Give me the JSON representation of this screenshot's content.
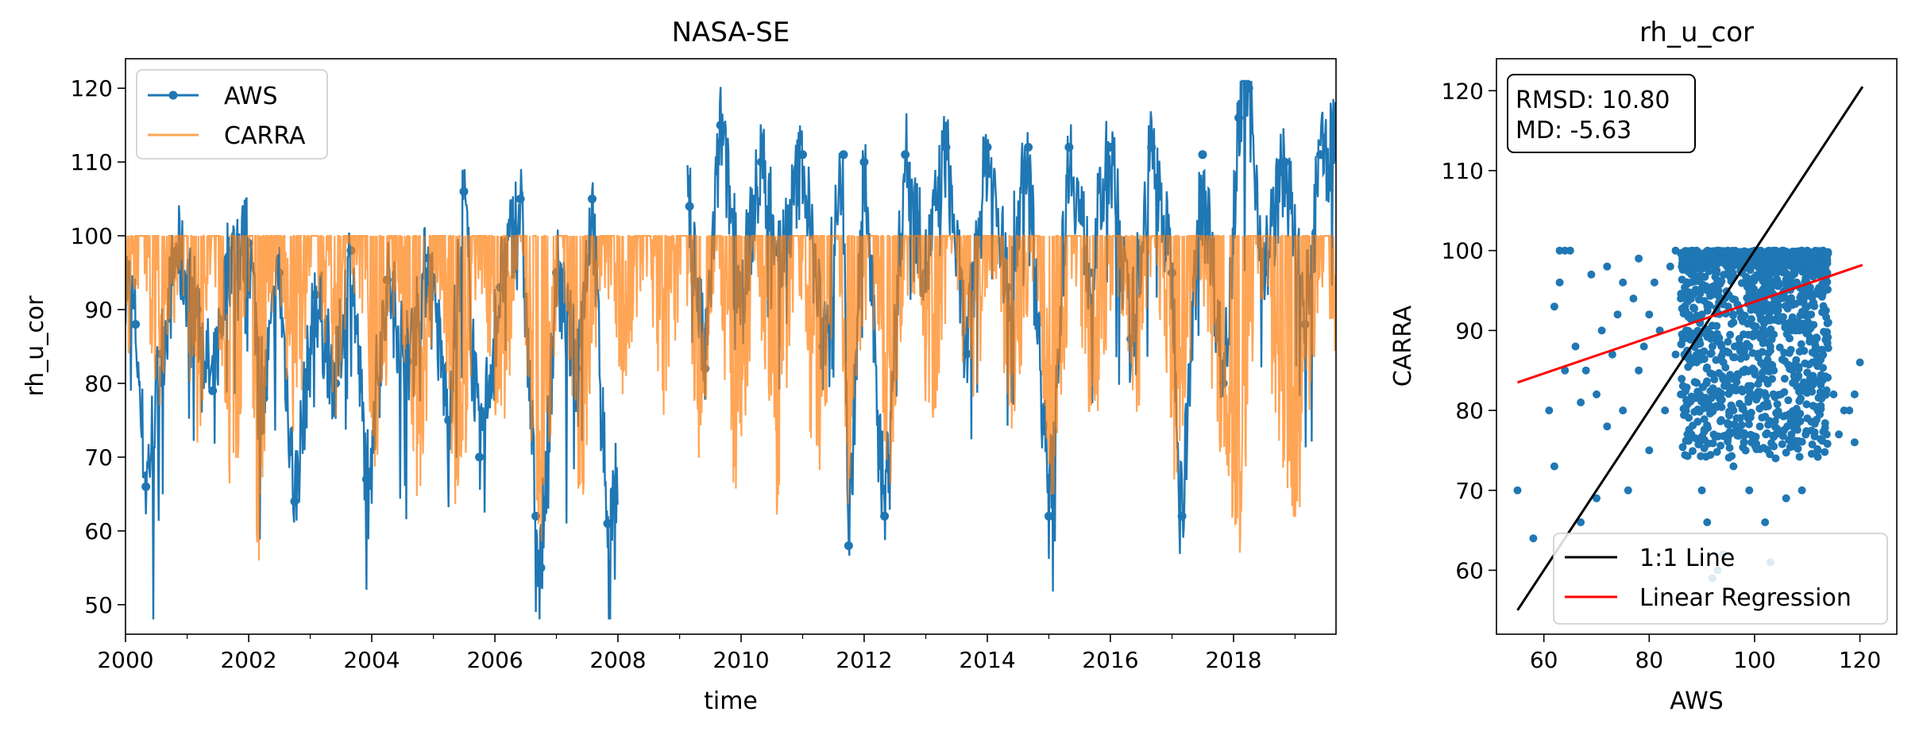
{
  "colors": {
    "aws": "#1f77b4",
    "carra": "#ff7f0e",
    "identity_line": "#000000",
    "regression_line": "#ff0000"
  },
  "chart_data": [
    {
      "type": "line",
      "title": "NASA-SE",
      "xlabel": "time",
      "ylabel": "rh_u_cor",
      "xlim": [
        "2000-01-01",
        "2019-09-01"
      ],
      "ylim": [
        46,
        124
      ],
      "xticks": [
        "2000",
        "2002",
        "2004",
        "2006",
        "2008",
        "2010",
        "2012",
        "2014",
        "2016",
        "2018"
      ],
      "yticks": [
        "50",
        "60",
        "70",
        "80",
        "90",
        "100",
        "110",
        "120"
      ],
      "legend": {
        "placement": "top-left",
        "entries": [
          "AWS",
          "CARRA"
        ]
      },
      "grid": false,
      "series": [
        {
          "name": "AWS",
          "style": "line-with-point-markers",
          "opacity": 1.0,
          "breaks_no_data": [
            [
              "2008-01-01",
              "2009-02-15"
            ]
          ],
          "points": [
            [
              "2000-01-01",
              95
            ],
            [
              "2000-03-01",
              88
            ],
            [
              "2000-05-01",
              66
            ],
            [
              "2000-08-01",
              84
            ],
            [
              "2000-11-01",
              98
            ],
            [
              "2001-03-01",
              90
            ],
            [
              "2001-06-01",
              79
            ],
            [
              "2001-09-01",
              97
            ],
            [
              "2002-01-01",
              99
            ],
            [
              "2002-04-01",
              78
            ],
            [
              "2002-07-01",
              95
            ],
            [
              "2002-10-01",
              64
            ],
            [
              "2003-02-01",
              92
            ],
            [
              "2003-06-01",
              80
            ],
            [
              "2003-09-01",
              98
            ],
            [
              "2003-12-01",
              67
            ],
            [
              "2004-04-01",
              94
            ],
            [
              "2004-08-01",
              83
            ],
            [
              "2004-12-01",
              97
            ],
            [
              "2005-04-01",
              75
            ],
            [
              "2005-07-01",
              106
            ],
            [
              "2005-10-01",
              70
            ],
            [
              "2006-02-01",
              93
            ],
            [
              "2006-06-01",
              105
            ],
            [
              "2006-09-01",
              62
            ],
            [
              "2006-10-01",
              55
            ],
            [
              "2007-01-01",
              95
            ],
            [
              "2007-05-01",
              82
            ],
            [
              "2007-08-01",
              105
            ],
            [
              "2007-11-01",
              61
            ],
            [
              "2009-03-01",
              104
            ],
            [
              "2009-06-01",
              82
            ],
            [
              "2009-09-01",
              115
            ],
            [
              "2010-01-01",
              92
            ],
            [
              "2010-05-01",
              110
            ],
            [
              "2010-09-01",
              97
            ],
            [
              "2011-01-01",
              111
            ],
            [
              "2011-05-01",
              85
            ],
            [
              "2011-09-01",
              111
            ],
            [
              "2011-10-01",
              58
            ],
            [
              "2012-01-01",
              110
            ],
            [
              "2012-05-01",
              62
            ],
            [
              "2012-09-01",
              111
            ],
            [
              "2013-01-01",
              95
            ],
            [
              "2013-05-01",
              112
            ],
            [
              "2013-09-01",
              84
            ],
            [
              "2014-01-01",
              112
            ],
            [
              "2014-05-01",
              93
            ],
            [
              "2014-09-01",
              112
            ],
            [
              "2015-01-01",
              62
            ],
            [
              "2015-05-01",
              112
            ],
            [
              "2015-09-01",
              95
            ],
            [
              "2016-01-01",
              112
            ],
            [
              "2016-05-01",
              86
            ],
            [
              "2016-09-01",
              112
            ],
            [
              "2017-01-01",
              95
            ],
            [
              "2017-03-01",
              62
            ],
            [
              "2017-07-01",
              111
            ],
            [
              "2017-11-01",
              80
            ],
            [
              "2018-02-01",
              116
            ],
            [
              "2018-04-01",
              120
            ],
            [
              "2018-07-01",
              95
            ],
            [
              "2018-11-01",
              110
            ],
            [
              "2019-03-01",
              88
            ],
            [
              "2019-06-01",
              111
            ],
            [
              "2019-09-01",
              112
            ]
          ]
        },
        {
          "name": "CARRA",
          "style": "line",
          "opacity": 0.7,
          "ceiling": 100,
          "points": [
            [
              "2000-01-01",
              86
            ],
            [
              "2000-04-01",
              100
            ],
            [
              "2000-08-01",
              80
            ],
            [
              "2000-12-01",
              100
            ],
            [
              "2001-03-01",
              74
            ],
            [
              "2001-06-01",
              100
            ],
            [
              "2001-10-01",
              64
            ],
            [
              "2002-01-01",
              100
            ],
            [
              "2002-03-01",
              57
            ],
            [
              "2002-06-01",
              100
            ],
            [
              "2002-10-01",
              76
            ],
            [
              "2003-02-01",
              100
            ],
            [
              "2003-06-01",
              80
            ],
            [
              "2003-10-01",
              100
            ],
            [
              "2004-02-01",
              70
            ],
            [
              "2004-06-01",
              100
            ],
            [
              "2004-10-01",
              66
            ],
            [
              "2005-02-01",
              100
            ],
            [
              "2005-06-01",
              63
            ],
            [
              "2005-10-01",
              100
            ],
            [
              "2006-02-01",
              74
            ],
            [
              "2006-06-01",
              100
            ],
            [
              "2006-10-01",
              58
            ],
            [
              "2007-02-01",
              100
            ],
            [
              "2007-06-01",
              64
            ],
            [
              "2007-10-01",
              100
            ],
            [
              "2008-02-01",
              84
            ],
            [
              "2008-06-01",
              100
            ],
            [
              "2008-10-01",
              81
            ],
            [
              "2009-02-01",
              100
            ],
            [
              "2009-05-01",
              72
            ],
            [
              "2009-08-01",
              100
            ],
            [
              "2009-12-01",
              65
            ],
            [
              "2010-04-01",
              100
            ],
            [
              "2010-08-01",
              68
            ],
            [
              "2010-12-01",
              100
            ],
            [
              "2011-04-01",
              67
            ],
            [
              "2011-08-01",
              100
            ],
            [
              "2011-10-01",
              64
            ],
            [
              "2012-02-01",
              100
            ],
            [
              "2012-06-01",
              70
            ],
            [
              "2012-10-01",
              100
            ],
            [
              "2013-02-01",
              77
            ],
            [
              "2013-06-01",
              100
            ],
            [
              "2013-10-01",
              80
            ],
            [
              "2014-02-01",
              100
            ],
            [
              "2014-06-01",
              78
            ],
            [
              "2014-10-01",
              100
            ],
            [
              "2015-02-01",
              66
            ],
            [
              "2015-06-01",
              100
            ],
            [
              "2015-10-01",
              75
            ],
            [
              "2016-02-01",
              100
            ],
            [
              "2016-06-01",
              80
            ],
            [
              "2016-10-01",
              100
            ],
            [
              "2017-02-01",
              68
            ],
            [
              "2017-06-01",
              100
            ],
            [
              "2017-10-01",
              78
            ],
            [
              "2018-02-01",
              61
            ],
            [
              "2018-06-01",
              100
            ],
            [
              "2018-10-01",
              73
            ],
            [
              "2019-02-01",
              65
            ],
            [
              "2019-06-01",
              100
            ],
            [
              "2019-09-01",
              88
            ]
          ]
        }
      ]
    },
    {
      "type": "scatter",
      "title": "rh_u_cor",
      "xlabel": "AWS",
      "ylabel": "CARRA",
      "xlim": [
        51,
        127
      ],
      "ylim": [
        52,
        124
      ],
      "xticks": [
        "60",
        "80",
        "100",
        "120"
      ],
      "yticks": [
        "60",
        "70",
        "80",
        "90",
        "100",
        "110",
        "120"
      ],
      "grid": false,
      "stats_box": {
        "placement": "top-left",
        "lines": [
          "RMSD: 10.80",
          "MD: -5.63"
        ]
      },
      "legend": {
        "placement": "bottom-right",
        "entries": [
          "1:1 Line",
          "Linear Regression"
        ]
      },
      "identity_line": {
        "x": [
          55,
          120.5
        ],
        "y": [
          55,
          120.5
        ]
      },
      "regression_line": {
        "x": [
          55,
          120.5
        ],
        "y": [
          83.5,
          98.2
        ]
      },
      "points": [
        [
          55,
          70
        ],
        [
          58,
          64
        ],
        [
          61,
          80
        ],
        [
          62,
          73
        ],
        [
          62,
          93
        ],
        [
          63,
          100
        ],
        [
          63,
          96
        ],
        [
          64,
          100
        ],
        [
          65,
          100
        ],
        [
          64,
          85
        ],
        [
          66,
          88
        ],
        [
          67,
          81
        ],
        [
          67,
          66
        ],
        [
          68,
          85
        ],
        [
          69,
          97
        ],
        [
          70,
          82
        ],
        [
          70,
          69
        ],
        [
          71,
          90
        ],
        [
          72,
          98
        ],
        [
          72,
          78
        ],
        [
          73,
          87
        ],
        [
          74,
          92
        ],
        [
          75,
          96
        ],
        [
          75,
          80
        ],
        [
          76,
          70
        ],
        [
          77,
          94
        ],
        [
          78,
          85
        ],
        [
          78,
          99
        ],
        [
          79,
          88
        ],
        [
          80,
          92
        ],
        [
          80,
          75
        ],
        [
          81,
          96
        ],
        [
          82,
          90
        ],
        [
          83,
          80
        ],
        [
          84,
          98
        ],
        [
          85,
          87
        ],
        [
          85,
          100
        ],
        [
          86,
          82
        ],
        [
          86,
          94
        ],
        [
          87,
          90
        ],
        [
          88,
          97
        ],
        [
          88,
          77
        ],
        [
          89,
          86
        ],
        [
          89,
          100
        ],
        [
          90,
          92
        ],
        [
          90,
          70
        ],
        [
          91,
          95
        ],
        [
          91,
          66
        ],
        [
          92,
          88
        ],
        [
          92,
          59
        ],
        [
          93,
          100
        ],
        [
          93,
          60
        ],
        [
          94,
          84
        ],
        [
          94,
          62
        ],
        [
          95,
          93
        ],
        [
          95,
          97
        ],
        [
          96,
          80
        ],
        [
          96,
          73
        ],
        [
          97,
          99
        ],
        [
          98,
          88
        ],
        [
          98,
          76
        ],
        [
          99,
          95
        ],
        [
          99,
          70
        ],
        [
          100,
          100
        ],
        [
          100,
          85
        ],
        [
          101,
          92
        ],
        [
          101,
          78
        ],
        [
          102,
          97
        ],
        [
          102,
          66
        ],
        [
          103,
          61
        ],
        [
          103,
          88
        ],
        [
          104,
          100
        ],
        [
          104,
          74
        ],
        [
          105,
          94
        ],
        [
          105,
          82
        ],
        [
          106,
          99
        ],
        [
          106,
          69
        ],
        [
          107,
          90
        ],
        [
          107,
          77
        ],
        [
          108,
          96
        ],
        [
          108,
          83
        ],
        [
          109,
          100
        ],
        [
          109,
          70
        ],
        [
          110,
          93
        ],
        [
          110,
          79
        ],
        [
          111,
          98
        ],
        [
          111,
          86
        ],
        [
          112,
          95
        ],
        [
          112,
          80
        ],
        [
          113,
          100
        ],
        [
          113,
          87
        ],
        [
          114,
          91
        ],
        [
          115,
          82
        ],
        [
          116,
          77
        ],
        [
          117,
          80
        ],
        [
          118,
          80
        ],
        [
          119,
          76
        ],
        [
          119,
          82
        ],
        [
          120,
          86
        ],
        [
          110,
          100
        ]
      ]
    }
  ]
}
